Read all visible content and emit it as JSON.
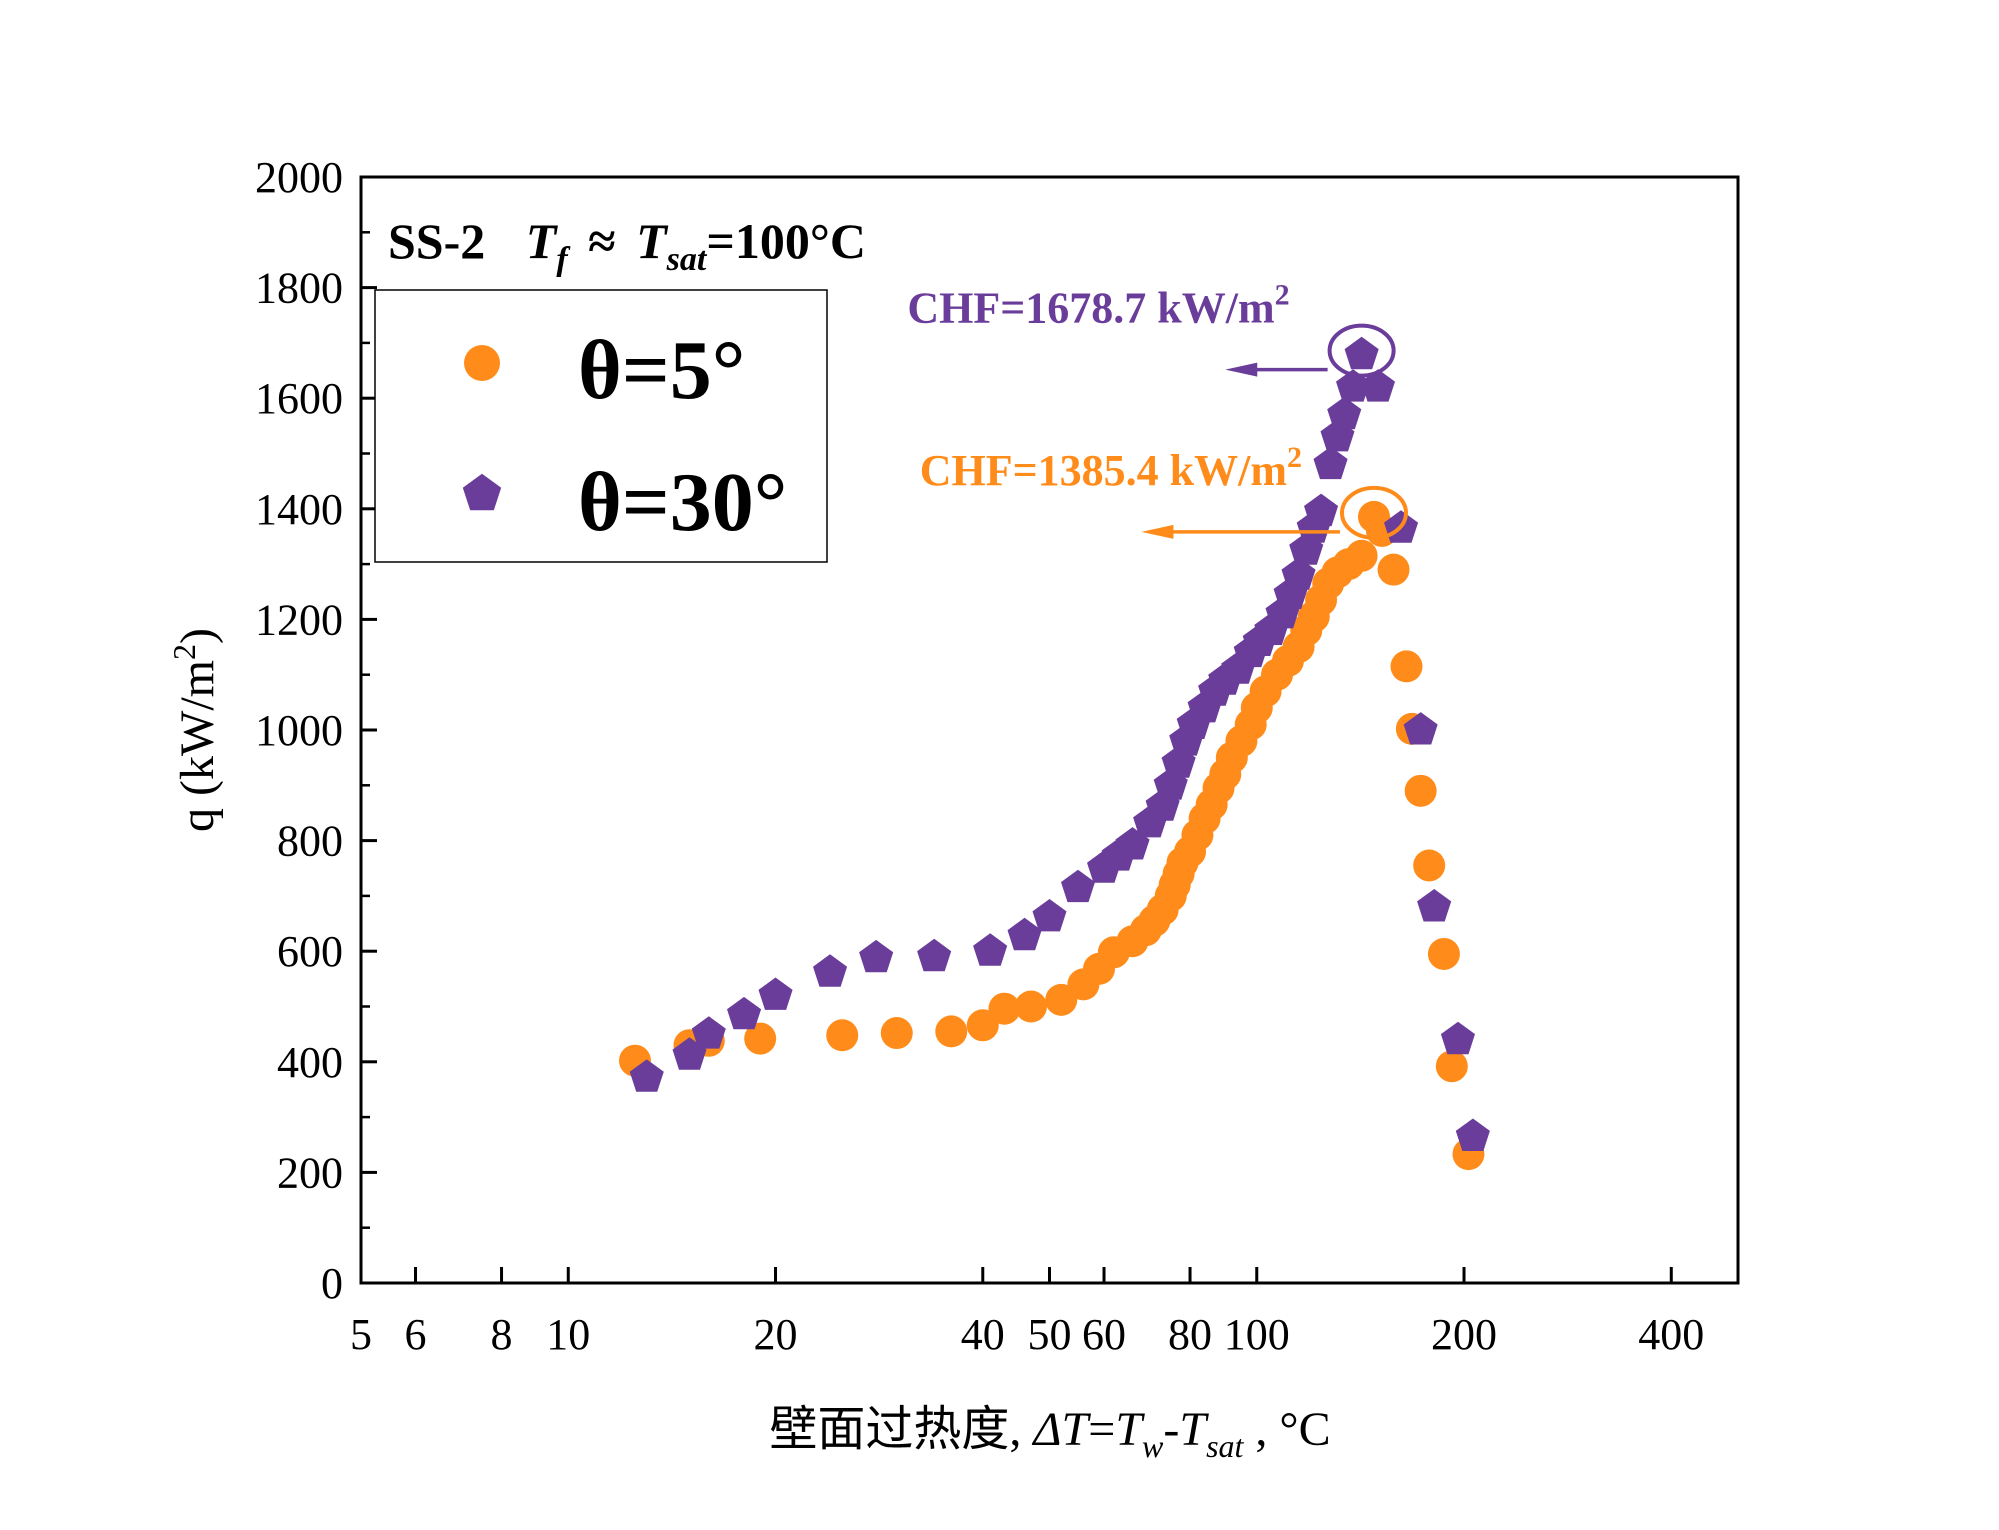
{
  "chart_data": {
    "type": "scatter",
    "title": "",
    "condition": {
      "sample": "SS-2",
      "tf": "T",
      "tf_sub": "f",
      "approx": "≈",
      "tsat": "T",
      "tsat_sub": "sat",
      "value": "=100°C"
    },
    "xlabel": {
      "cn": "壁面过热度, ",
      "delta": "ΔT",
      "eq": "=",
      "tw": "T",
      "tw_sub": "w",
      "minus": "-",
      "tsat": "T",
      "tsat_sub": "sat",
      "unit": " , °C"
    },
    "ylabel": {
      "text": "q (kW/m",
      "sup": "2",
      "close": ")"
    },
    "x_scale": "log",
    "xlim": [
      5,
      500
    ],
    "ylim": [
      0,
      2000
    ],
    "x_ticks": [
      5,
      6,
      8,
      10,
      20,
      40,
      50,
      60,
      80,
      100,
      200,
      400
    ],
    "x_tick_labels": [
      "5",
      "6",
      "8",
      "10",
      "20",
      "40",
      "50",
      "60",
      "80",
      "100",
      "200",
      "400"
    ],
    "y_ticks": [
      0,
      200,
      400,
      600,
      800,
      1000,
      1200,
      1400,
      1600,
      1800,
      2000
    ],
    "y_tick_labels": [
      "0",
      "200",
      "400",
      "600",
      "800",
      "1000",
      "1200",
      "1400",
      "1600",
      "1800",
      "2000"
    ],
    "legend_position": "top-left",
    "series": [
      {
        "name": "θ=5°",
        "color": "#FF8C1A",
        "marker": "circle",
        "points": [
          [
            12.5,
            402
          ],
          [
            15,
            430
          ],
          [
            16,
            438
          ],
          [
            19,
            442
          ],
          [
            25,
            448
          ],
          [
            30,
            452
          ],
          [
            36,
            455
          ],
          [
            40,
            466
          ],
          [
            43,
            496
          ],
          [
            47,
            500
          ],
          [
            52,
            512
          ],
          [
            56,
            540
          ],
          [
            59,
            568
          ],
          [
            62,
            598
          ],
          [
            66,
            618
          ],
          [
            69,
            638
          ],
          [
            71,
            655
          ],
          [
            73,
            675
          ],
          [
            75,
            700
          ],
          [
            76,
            720
          ],
          [
            77,
            740
          ],
          [
            78,
            760
          ],
          [
            80,
            780
          ],
          [
            82,
            810
          ],
          [
            84,
            840
          ],
          [
            86,
            865
          ],
          [
            88,
            895
          ],
          [
            90,
            920
          ],
          [
            92,
            950
          ],
          [
            95,
            980
          ],
          [
            98,
            1010
          ],
          [
            100,
            1040
          ],
          [
            103,
            1070
          ],
          [
            107,
            1100
          ],
          [
            111,
            1125
          ],
          [
            115,
            1150
          ],
          [
            118,
            1180
          ],
          [
            121,
            1205
          ],
          [
            124,
            1235
          ],
          [
            127,
            1265
          ],
          [
            131,
            1285
          ],
          [
            136,
            1300
          ],
          [
            142,
            1315
          ],
          [
            148,
            1385.4
          ],
          [
            152,
            1360
          ],
          [
            158,
            1290
          ],
          [
            165,
            1115
          ],
          [
            168,
            1002
          ],
          [
            173,
            890
          ],
          [
            178,
            755
          ],
          [
            187,
            595
          ],
          [
            192,
            392
          ],
          [
            203,
            233
          ]
        ]
      },
      {
        "name": "θ=30°",
        "color": "#6A3D9A",
        "marker": "pentagon",
        "points": [
          [
            13,
            372
          ],
          [
            15,
            412
          ],
          [
            16,
            450
          ],
          [
            18,
            485
          ],
          [
            20,
            520
          ],
          [
            24,
            562
          ],
          [
            28,
            588
          ],
          [
            34,
            590
          ],
          [
            41,
            600
          ],
          [
            46,
            628
          ],
          [
            50,
            662
          ],
          [
            55,
            715
          ],
          [
            60,
            750
          ],
          [
            63,
            772
          ],
          [
            66,
            792
          ],
          [
            70,
            832
          ],
          [
            73,
            862
          ],
          [
            75,
            900
          ],
          [
            77,
            940
          ],
          [
            79,
            980
          ],
          [
            81,
            1010
          ],
          [
            84,
            1040
          ],
          [
            87,
            1070
          ],
          [
            90,
            1090
          ],
          [
            94,
            1110
          ],
          [
            98,
            1140
          ],
          [
            101,
            1160
          ],
          [
            105,
            1180
          ],
          [
            109,
            1210
          ],
          [
            112,
            1245
          ],
          [
            115,
            1280
          ],
          [
            118,
            1325
          ],
          [
            121,
            1365
          ],
          [
            124,
            1395
          ],
          [
            128,
            1480
          ],
          [
            131,
            1530
          ],
          [
            134,
            1570
          ],
          [
            138,
            1620
          ],
          [
            142,
            1678.7
          ],
          [
            150,
            1620
          ],
          [
            162,
            1365
          ],
          [
            173,
            1000
          ],
          [
            181,
            680
          ],
          [
            196,
            440
          ],
          [
            206,
            265
          ]
        ]
      }
    ],
    "annotations": [
      {
        "label": "CHF=1678.7 kW/m",
        "sup": "2",
        "color": "#6A3D9A",
        "x": 142,
        "y": 1678.7,
        "arrow_to_x": 90
      },
      {
        "label": "CHF=1385.4 kW/m",
        "sup": "2",
        "color": "#FF8C1A",
        "x": 148,
        "y": 1385.4,
        "arrow_to_x": 68
      }
    ]
  }
}
